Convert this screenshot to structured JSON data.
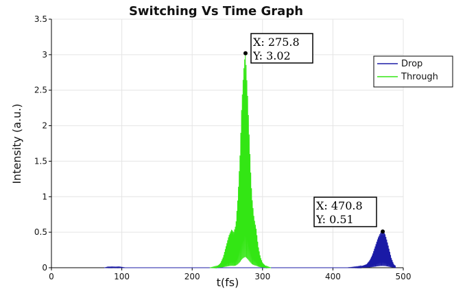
{
  "chart_data": {
    "type": "line",
    "title": "Switching Vs Time Graph",
    "xlabel": "t(fs)",
    "ylabel": "Intensity (a.u.)",
    "xlim": [
      0,
      500
    ],
    "ylim": [
      0,
      3.5
    ],
    "xticks": [
      "0",
      "100",
      "200",
      "300",
      "400",
      "500"
    ],
    "yticks": [
      "0",
      "0.5",
      "1",
      "1.5",
      "2",
      "2.5",
      "3",
      "3.5"
    ],
    "grid": true,
    "legend_position": "top-right",
    "series": [
      {
        "name": "Drop",
        "color": "#1a1aa6",
        "peak_x": 470.8,
        "peak_y": 0.51,
        "envelope": [
          [
            75,
            0
          ],
          [
            80,
            0.01
          ],
          [
            85,
            0.012
          ],
          [
            90,
            0.01
          ],
          [
            95,
            0.012
          ],
          [
            100,
            0.008
          ],
          [
            105,
            0
          ],
          [
            420,
            0
          ],
          [
            430,
            0.01
          ],
          [
            440,
            0.02
          ],
          [
            448,
            0.05
          ],
          [
            452,
            0.1
          ],
          [
            456,
            0.18
          ],
          [
            460,
            0.3
          ],
          [
            464,
            0.42
          ],
          [
            468,
            0.5
          ],
          [
            470.8,
            0.51
          ],
          [
            474,
            0.48
          ],
          [
            477,
            0.38
          ],
          [
            480,
            0.26
          ],
          [
            483,
            0.14
          ],
          [
            486,
            0.06
          ],
          [
            490,
            0
          ]
        ]
      },
      {
        "name": "Through",
        "color": "#33e614",
        "peak_x": 275.8,
        "peak_y": 3.02,
        "envelope": [
          [
            225,
            0
          ],
          [
            235,
            0.02
          ],
          [
            240,
            0.06
          ],
          [
            244,
            0.15
          ],
          [
            248,
            0.3
          ],
          [
            252,
            0.45
          ],
          [
            256,
            0.54
          ],
          [
            259,
            0.5
          ],
          [
            262,
            0.6
          ],
          [
            265,
            1.0
          ],
          [
            268,
            1.6
          ],
          [
            270,
            2.2
          ],
          [
            272,
            2.6
          ],
          [
            274,
            2.9
          ],
          [
            275.8,
            3.02
          ],
          [
            277,
            2.8
          ],
          [
            279,
            2.4
          ],
          [
            281,
            1.9
          ],
          [
            283,
            1.4
          ],
          [
            285,
            1.0
          ],
          [
            288,
            0.7
          ],
          [
            291,
            0.55
          ],
          [
            294,
            0.3
          ],
          [
            297,
            0.15
          ],
          [
            300,
            0.07
          ],
          [
            305,
            0.02
          ],
          [
            312,
            0
          ]
        ]
      }
    ],
    "annotations": [
      {
        "x_label": "X: 275.8",
        "y_label": "Y: 3.02"
      },
      {
        "x_label": "X: 470.8",
        "y_label": "Y: 0.51"
      }
    ]
  }
}
